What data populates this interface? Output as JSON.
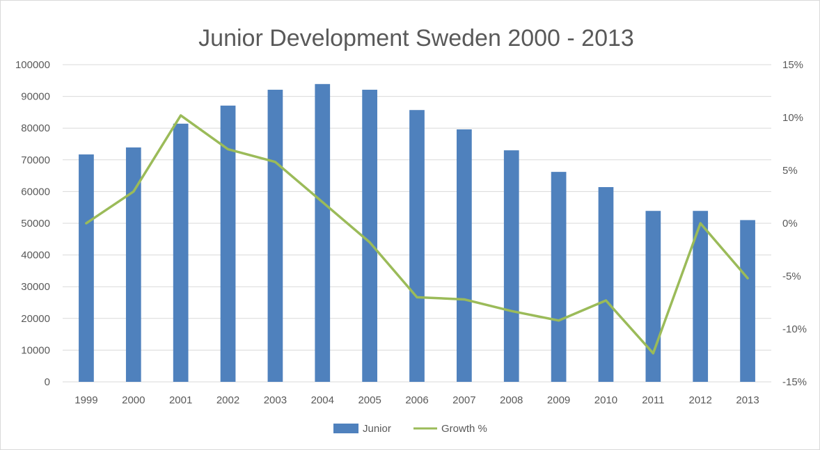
{
  "chart_data": {
    "type": "bar",
    "title": "Junior Development Sweden 2000 - 2013",
    "xlabel": "",
    "ylabel": "",
    "categories": [
      "1999",
      "2000",
      "2001",
      "2002",
      "2003",
      "2004",
      "2005",
      "2006",
      "2007",
      "2008",
      "2009",
      "2010",
      "2011",
      "2012",
      "2013"
    ],
    "series": [
      {
        "name": "Junior",
        "type": "bar",
        "axis": "left",
        "color": "#4f81bd",
        "values": [
          71700,
          73900,
          81400,
          87100,
          92100,
          93900,
          92100,
          85700,
          79600,
          73000,
          66200,
          61400,
          53900,
          53900,
          51000
        ]
      },
      {
        "name": "Growth %",
        "type": "line",
        "axis": "right",
        "color": "#9bbb59",
        "values": [
          0.0,
          3.0,
          10.2,
          7.0,
          5.8,
          2.0,
          -1.8,
          -7.0,
          -7.2,
          -8.3,
          -9.2,
          -7.3,
          -12.3,
          0.0,
          -5.2
        ]
      }
    ],
    "ylim": [
      0,
      100000
    ],
    "yticks": [
      "0",
      "10000",
      "20000",
      "30000",
      "40000",
      "50000",
      "60000",
      "70000",
      "80000",
      "90000",
      "100000"
    ],
    "y2lim": [
      -15,
      15
    ],
    "y2ticks": [
      "-15%",
      "-10%",
      "-5%",
      "0%",
      "5%",
      "10%",
      "15%"
    ],
    "grid": true,
    "legend_position": "bottom"
  }
}
